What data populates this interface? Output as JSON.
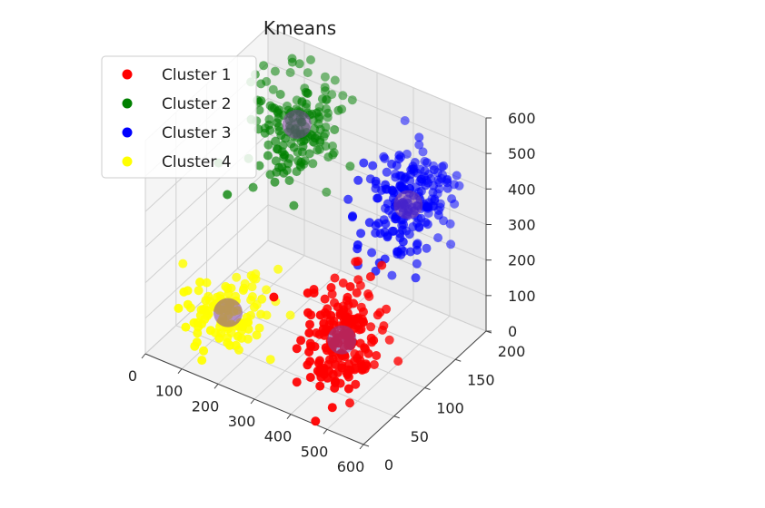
{
  "chart_data": {
    "type": "scatter",
    "projection": "3d",
    "title": "Kmeans",
    "xlabel": "",
    "ylabel": "",
    "zlabel": "",
    "xlim": [
      0,
      600
    ],
    "ylim": [
      0,
      200
    ],
    "zlim": [
      0,
      600
    ],
    "x_ticks": [
      "0",
      "100",
      "200",
      "300",
      "400",
      "500",
      "600"
    ],
    "y_ticks": [
      "0",
      "50",
      "100",
      "150",
      "200"
    ],
    "z_ticks": [
      "0",
      "100",
      "200",
      "300",
      "400",
      "500",
      "600"
    ],
    "grid": true,
    "legend_position": "upper-left",
    "series": [
      {
        "name": "Cluster 1",
        "color": "#ff0000",
        "center": [
          490,
          30,
          200
        ],
        "spread": [
          75,
          30,
          120
        ],
        "count": 190
      },
      {
        "name": "Cluster 2",
        "color": "#008000",
        "center": [
          130,
          170,
          430
        ],
        "spread": [
          90,
          30,
          110
        ],
        "count": 170
      },
      {
        "name": "Cluster 3",
        "color": "#0000ff",
        "center": [
          470,
          150,
          380
        ],
        "spread": [
          80,
          35,
          120
        ],
        "count": 210
      },
      {
        "name": "Cluster 4",
        "color": "#ffff00",
        "center": [
          160,
          40,
          120
        ],
        "spread": [
          85,
          30,
          70
        ],
        "count": 110
      }
    ],
    "centroids": [
      {
        "x": 490,
        "y": 30,
        "z": 200
      },
      {
        "x": 130,
        "y": 170,
        "z": 430
      },
      {
        "x": 470,
        "y": 150,
        "z": 380
      },
      {
        "x": 160,
        "y": 40,
        "z": 120
      }
    ],
    "centroid_color": "#7f3f9f"
  }
}
